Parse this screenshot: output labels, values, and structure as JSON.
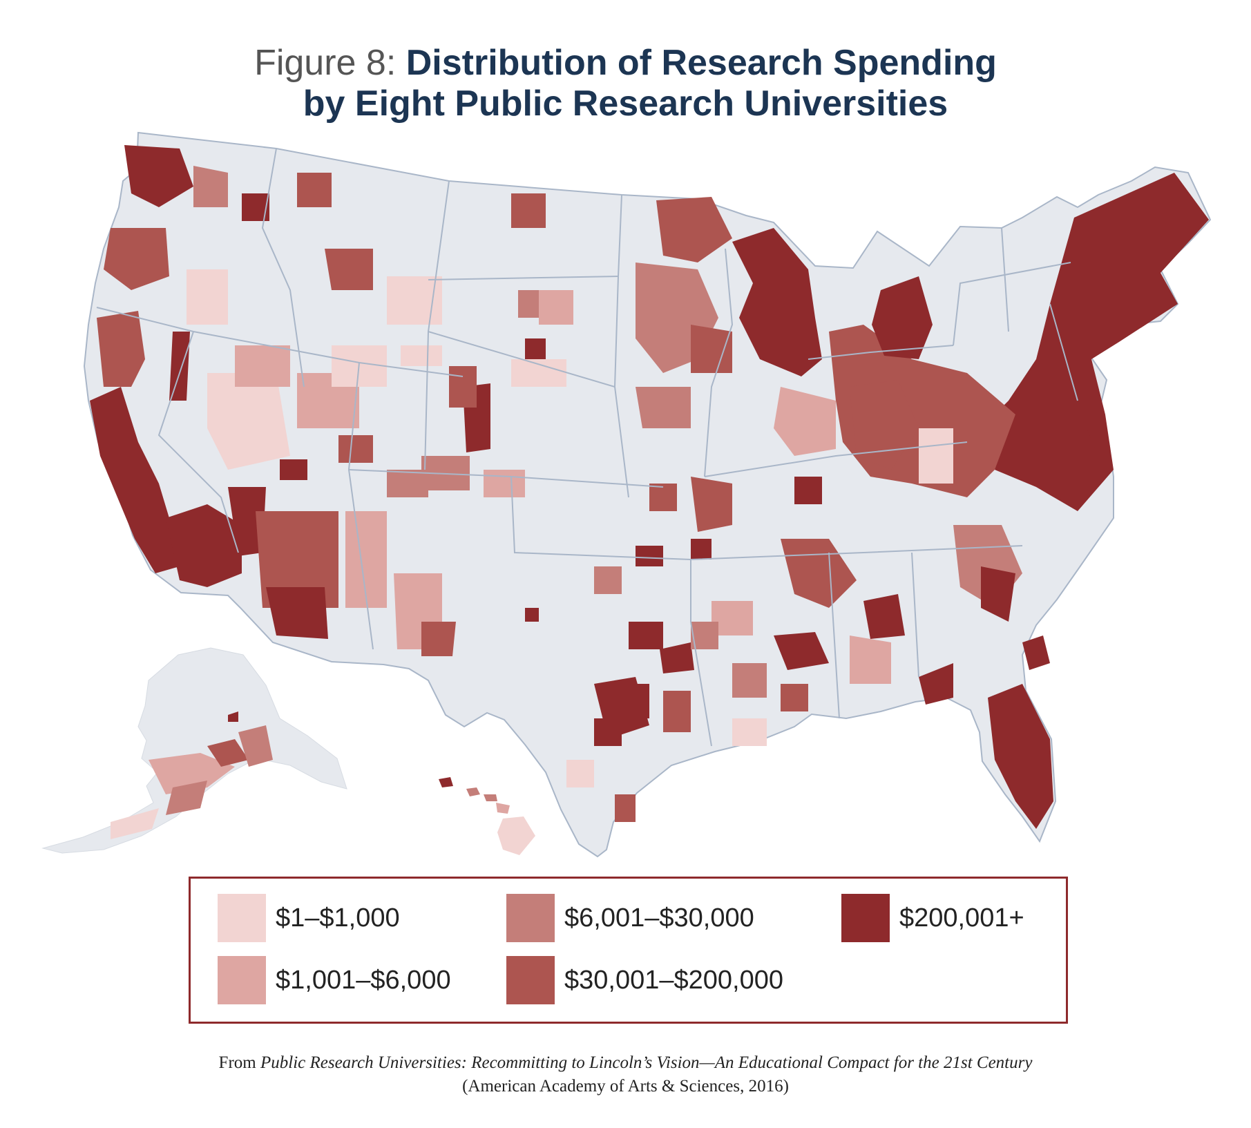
{
  "title": {
    "prefix": "Figure 8:",
    "line1": "Distribution of Research Spending",
    "line2": "by Eight Public Research Universities"
  },
  "colors": {
    "background": "#ffffff",
    "land_no_data": "#e6e9ee",
    "state_border": "#a9b6c8",
    "title": "#1c3553",
    "legend_border": "#8e2a2c"
  },
  "legend": {
    "items": [
      {
        "label": "$1–$1,000",
        "color": "#f2d4d2"
      },
      {
        "label": "$1,001–$6,000",
        "color": "#dea6a2"
      },
      {
        "label": "$6,001–$30,000",
        "color": "#c47e79"
      },
      {
        "label": "$30,001–$200,000",
        "color": "#ad5550"
      },
      {
        "label": "$200,001+",
        "color": "#8e2a2c"
      }
    ]
  },
  "source": {
    "prefix": "From",
    "italic": "Public Research Universities: Recommitting to Lincoln’s Vision—An Educational Compact for the 21st Century",
    "line2": "(American Academy of Arts & Sciences, 2016)"
  }
}
